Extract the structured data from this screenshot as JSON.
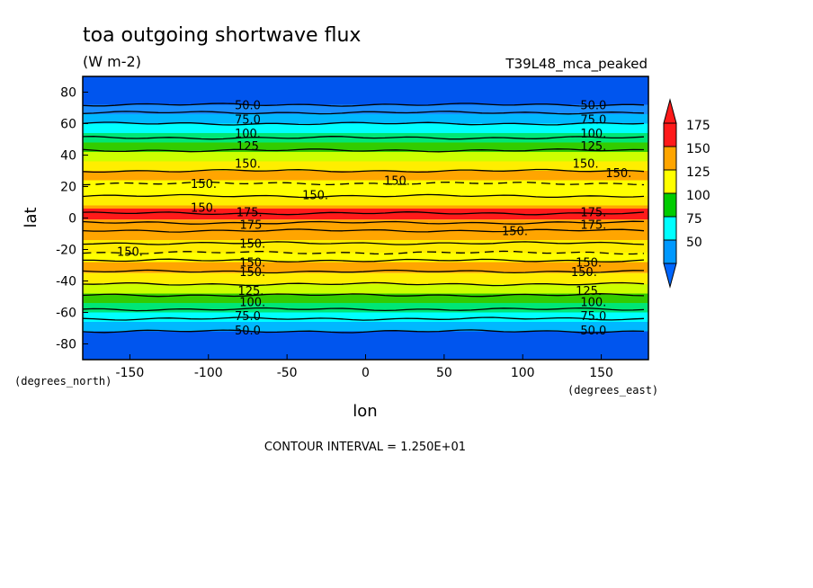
{
  "chart_data": {
    "type": "heatmap",
    "title": "toa outgoing shortwave flux",
    "units": "(W m-2)",
    "run_label": "T39L48_mca_peaked",
    "xlabel": "lon",
    "ylabel": "lat",
    "x_unit_label": "(degrees_east)",
    "y_unit_label": "(degrees_north)",
    "xlim": [
      -180,
      180
    ],
    "ylim": [
      -90,
      90
    ],
    "x_ticks": [
      "-150",
      "-100",
      "-50",
      "0",
      "50",
      "100",
      "150"
    ],
    "x_tick_values": [
      -150,
      -100,
      -50,
      0,
      50,
      100,
      150
    ],
    "y_ticks": [
      "80",
      "60",
      "40",
      "20",
      "0",
      "-20",
      "-40",
      "-60",
      "-80"
    ],
    "y_tick_values": [
      80,
      60,
      40,
      20,
      0,
      -20,
      -40,
      -60,
      -80
    ],
    "contour_interval_text": "CONTOUR INTERVAL = 1.250E+01",
    "colorbar": {
      "labels": [
        "175",
        "150",
        "125",
        "100",
        "75",
        "50"
      ],
      "colors": [
        "#ff1a1a",
        "#ffa500",
        "#ffff00",
        "#00cc00",
        "#00ffff",
        "#0099ff"
      ],
      "under_color": "#0066ff",
      "over_color": "#ff1a1a"
    },
    "bands": [
      {
        "lat": [
          72,
          90
        ],
        "color": "#0055ee"
      },
      {
        "lat": [
          66,
          72
        ],
        "color": "#1a8cff"
      },
      {
        "lat": [
          60,
          66
        ],
        "color": "#00b8ff"
      },
      {
        "lat": [
          54,
          60
        ],
        "color": "#00ffff"
      },
      {
        "lat": [
          48,
          54
        ],
        "color": "#00e676"
      },
      {
        "lat": [
          42,
          48
        ],
        "color": "#33cc00"
      },
      {
        "lat": [
          36,
          42
        ],
        "color": "#ccff00"
      },
      {
        "lat": [
          30,
          36
        ],
        "color": "#ffee00"
      },
      {
        "lat": [
          24,
          30
        ],
        "color": "#ffa500"
      },
      {
        "lat": [
          14,
          24
        ],
        "color": "#ffff00"
      },
      {
        "lat": [
          8,
          14
        ],
        "color": "#ffee00"
      },
      {
        "lat": [
          6,
          8
        ],
        "color": "#ffa500"
      },
      {
        "lat": [
          -1,
          6
        ],
        "color": "#ff1a1a"
      },
      {
        "lat": [
          -14,
          -1
        ],
        "color": "#ffa500"
      },
      {
        "lat": [
          -22,
          -14
        ],
        "color": "#ffee00"
      },
      {
        "lat": [
          -28,
          -22
        ],
        "color": "#ffff00"
      },
      {
        "lat": [
          -35,
          -28
        ],
        "color": "#ffa500"
      },
      {
        "lat": [
          -42,
          -35
        ],
        "color": "#ffee00"
      },
      {
        "lat": [
          -48,
          -42
        ],
        "color": "#ccff00"
      },
      {
        "lat": [
          -54,
          -48
        ],
        "color": "#33cc00"
      },
      {
        "lat": [
          -60,
          -54
        ],
        "color": "#00e676"
      },
      {
        "lat": [
          -66,
          -60
        ],
        "color": "#00ffff"
      },
      {
        "lat": [
          -72,
          -66
        ],
        "color": "#00b8ff"
      },
      {
        "lat": [
          -90,
          -72
        ],
        "color": "#0055ee"
      }
    ],
    "contours": [
      {
        "lat": 72
      },
      {
        "lat": 67
      },
      {
        "lat": 60
      },
      {
        "lat": 51
      },
      {
        "lat": 43
      },
      {
        "lat": 30
      },
      {
        "lat": 22,
        "dashed": true
      },
      {
        "lat": 14
      },
      {
        "lat": 3
      },
      {
        "lat": -3
      },
      {
        "lat": -8
      },
      {
        "lat": -16
      },
      {
        "lat": -22,
        "dashed": true
      },
      {
        "lat": -27
      },
      {
        "lat": -34
      },
      {
        "lat": -42
      },
      {
        "lat": -49
      },
      {
        "lat": -58
      },
      {
        "lat": -64
      },
      {
        "lat": -72
      }
    ],
    "contour_labels": [
      {
        "text": "50.0",
        "lon": -75,
        "lat": 72
      },
      {
        "text": "50.0",
        "lon": 145,
        "lat": 72
      },
      {
        "text": "75.0",
        "lon": -75,
        "lat": 63
      },
      {
        "text": "75.0",
        "lon": 145,
        "lat": 63
      },
      {
        "text": "100.",
        "lon": -75,
        "lat": 54
      },
      {
        "text": "100.",
        "lon": 145,
        "lat": 54
      },
      {
        "text": "125",
        "lon": -75,
        "lat": 46
      },
      {
        "text": "125.",
        "lon": 145,
        "lat": 46
      },
      {
        "text": "150.",
        "lon": -75,
        "lat": 35
      },
      {
        "text": "150.",
        "lon": 140,
        "lat": 35
      },
      {
        "text": "150.",
        "lon": 161,
        "lat": 29
      },
      {
        "text": "150.",
        "lon": 20,
        "lat": 24
      },
      {
        "text": "150.",
        "lon": -103,
        "lat": 22
      },
      {
        "text": "150.",
        "lon": -32,
        "lat": 15
      },
      {
        "text": "150.",
        "lon": -103,
        "lat": 7
      },
      {
        "text": "175.",
        "lon": -74,
        "lat": 4
      },
      {
        "text": "175.",
        "lon": 145,
        "lat": 4
      },
      {
        "text": "175",
        "lon": -73,
        "lat": -4
      },
      {
        "text": "175.",
        "lon": 145,
        "lat": -4
      },
      {
        "text": "150.",
        "lon": 95,
        "lat": -8
      },
      {
        "text": "150.",
        "lon": -72,
        "lat": -16
      },
      {
        "text": "150.",
        "lon": -150,
        "lat": -21
      },
      {
        "text": "150.",
        "lon": -72,
        "lat": -28
      },
      {
        "text": "150.",
        "lon": 142,
        "lat": -28
      },
      {
        "text": "150.",
        "lon": -72,
        "lat": -34
      },
      {
        "text": "150.",
        "lon": 139,
        "lat": -34
      },
      {
        "text": "125.",
        "lon": -73,
        "lat": -46
      },
      {
        "text": "125.",
        "lon": 142,
        "lat": -46
      },
      {
        "text": "100.",
        "lon": -72,
        "lat": -53
      },
      {
        "text": "100.",
        "lon": 145,
        "lat": -53
      },
      {
        "text": "75.0",
        "lon": -75,
        "lat": -62
      },
      {
        "text": "75.0",
        "lon": 145,
        "lat": -62
      },
      {
        "text": "50.0",
        "lon": -75,
        "lat": -71
      },
      {
        "text": "50.0",
        "lon": 145,
        "lat": -71
      }
    ]
  }
}
